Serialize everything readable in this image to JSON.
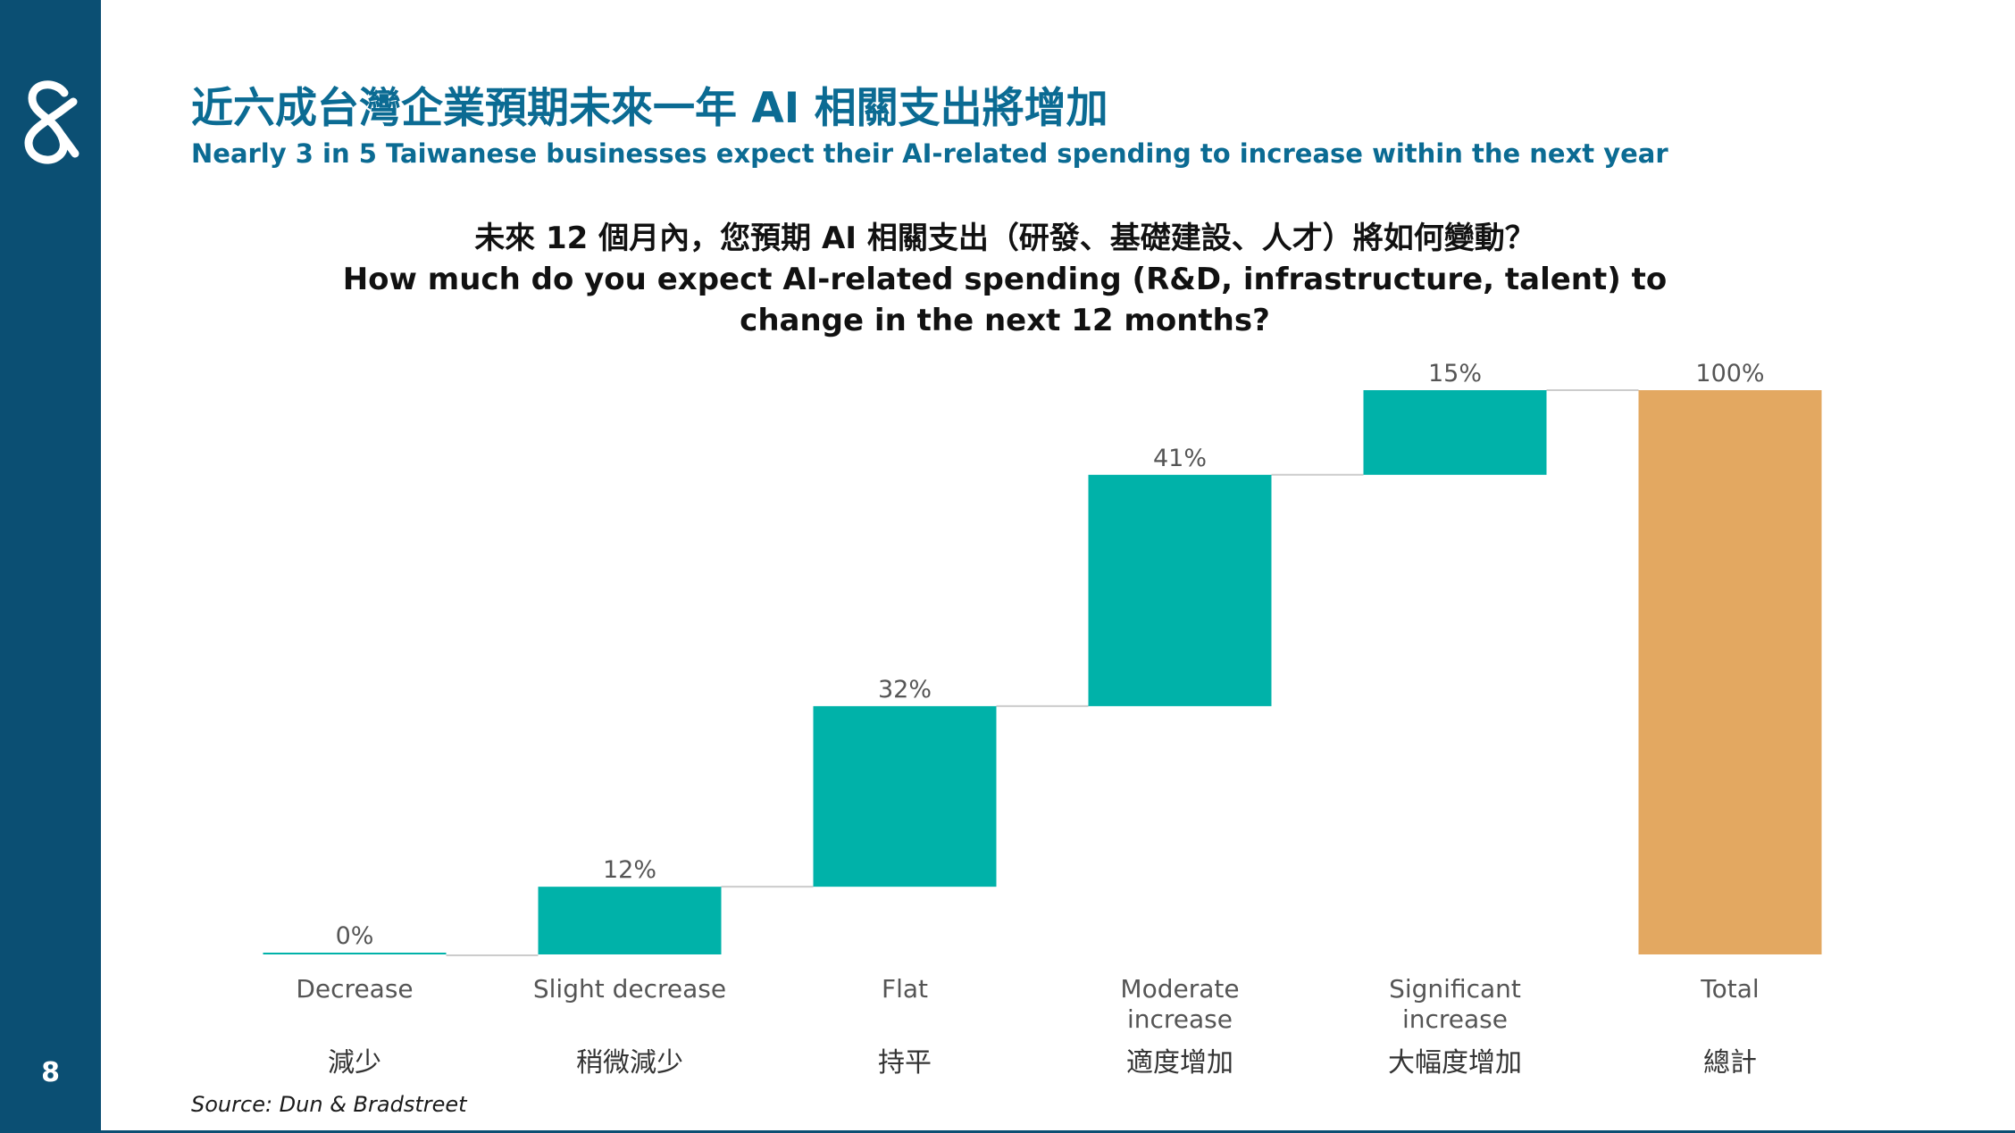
{
  "page": {
    "page_number": "8",
    "title_zh": "近六成台灣企業預期未來一年 AI 相關支出將增加",
    "title_en": "Nearly 3 in 5 Taiwanese businesses expect their AI-related spending to increase within the next year",
    "source": "Source: Dun & Bradstreet"
  },
  "colors": {
    "sidebar": "#0b4f73",
    "title": "#0b6b93",
    "bar_step": "#00b2a9",
    "bar_total": "#e3a861",
    "connector": "#cccccc",
    "label_text": "#555555"
  },
  "chart_data": {
    "type": "waterfall",
    "title_zh": "未來 12 個月內，您預期 AI 相關支出（研發、基礎建設、人才）將如何變動？",
    "title_en": "How much do you expect AI-related spending (R&D, infrastructure, talent) to change in the next 12 months?",
    "categories": [
      {
        "label_en": [
          "Decrease"
        ],
        "label_zh": "減少",
        "value": 0,
        "value_label": "0%",
        "kind": "step"
      },
      {
        "label_en": [
          "Slight decrease"
        ],
        "label_zh": "稍微減少",
        "value": 12,
        "value_label": "12%",
        "kind": "step"
      },
      {
        "label_en": [
          "Flat"
        ],
        "label_zh": "持平",
        "value": 32,
        "value_label": "32%",
        "kind": "step"
      },
      {
        "label_en": [
          "Moderate",
          "increase"
        ],
        "label_zh": "適度增加",
        "value": 41,
        "value_label": "41%",
        "kind": "step"
      },
      {
        "label_en": [
          "Significant",
          "increase"
        ],
        "label_zh": "大幅度增加",
        "value": 15,
        "value_label": "15%",
        "kind": "step"
      },
      {
        "label_en": [
          "Total"
        ],
        "label_zh": "總計",
        "value": 100,
        "value_label": "100%",
        "kind": "total"
      }
    ],
    "ylim": [
      0,
      100
    ],
    "grid": false,
    "legend": "none"
  }
}
